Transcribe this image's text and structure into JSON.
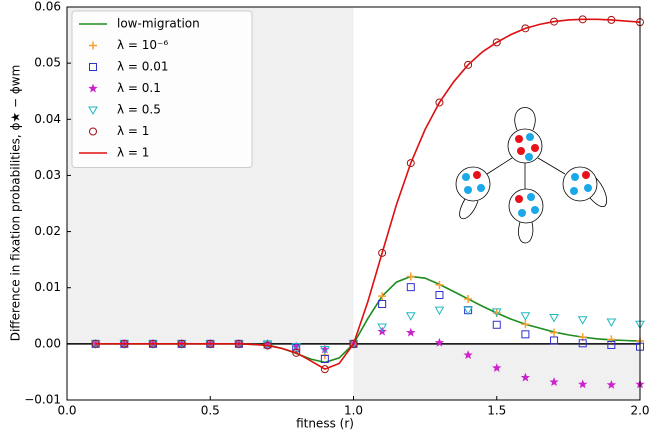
{
  "chart_data": {
    "type": "line",
    "xlabel": "fitness (r)",
    "ylabel": "Difference in fixation probabilities, ϕ★ − ϕwm",
    "xlim": [
      0,
      2.0
    ],
    "ylim": [
      -0.01,
      0.06
    ],
    "xticks": [
      {
        "value": 0,
        "label": "0.0"
      },
      0.5,
      {
        "value": 1,
        "label": "1.0"
      },
      1.5,
      {
        "value": 2,
        "label": "2.0"
      }
    ],
    "yticks": [
      {
        "value": -0.01,
        "label": "−0.01"
      },
      {
        "value": 0,
        "label": "0.00"
      },
      0.01,
      0.02,
      0.03,
      0.04,
      0.05,
      0.06
    ],
    "legend": "upper left",
    "series": [
      {
        "name": "low-migration",
        "color": "#1e8c1e",
        "mark": "line",
        "x": [
          0.1,
          0.15,
          0.2,
          0.25,
          0.3,
          0.35,
          0.4,
          0.45,
          0.5,
          0.55,
          0.6,
          0.65,
          0.7,
          0.75,
          0.8,
          0.85,
          0.9,
          0.95,
          1.0,
          1.05,
          1.1,
          1.15,
          1.2,
          1.25,
          1.3,
          1.35,
          1.4,
          1.45,
          1.5,
          1.55,
          1.6,
          1.65,
          1.7,
          1.75,
          1.8,
          1.85,
          1.9,
          1.95,
          2.0
        ],
        "values": [
          0,
          0,
          0,
          0,
          0,
          0,
          0,
          0,
          0,
          0,
          0,
          -0.0001,
          -0.0002,
          -0.0008,
          -0.0017,
          -0.0027,
          -0.0033,
          -0.0025,
          0,
          0.0045,
          0.0085,
          0.011,
          0.012,
          0.0117,
          0.0106,
          0.0093,
          0.008,
          0.0067,
          0.0055,
          0.0044,
          0.0035,
          0.0028,
          0.0021,
          0.0016,
          0.0012,
          0.0009,
          0.0007,
          0.0006,
          0.0005
        ]
      },
      {
        "name": "λ = 10⁻⁶",
        "color": "#f5a030",
        "mark": "plus",
        "x": [
          0.1,
          0.2,
          0.3,
          0.4,
          0.5,
          0.6,
          0.7,
          0.8,
          0.9,
          1.0,
          1.1,
          1.2,
          1.3,
          1.4,
          1.5,
          1.6,
          1.7,
          1.8,
          1.9,
          2.0
        ],
        "values": [
          0,
          0,
          0,
          0,
          0,
          0,
          -0.0001,
          -0.001,
          -0.002,
          0,
          0.0085,
          0.012,
          0.0105,
          0.008,
          0.0055,
          0.0035,
          0.002,
          0.0012,
          0.0008,
          0.0005
        ]
      },
      {
        "name": "λ = 0.01",
        "color": "#3030d0",
        "mark": "square",
        "x": [
          0.1,
          0.2,
          0.3,
          0.4,
          0.5,
          0.6,
          0.7,
          0.8,
          0.9,
          1.0,
          1.1,
          1.2,
          1.3,
          1.4,
          1.5,
          1.6,
          1.7,
          1.8,
          1.9,
          2.0
        ],
        "values": [
          0,
          0,
          0,
          0,
          0,
          0,
          -0.0001,
          -0.0008,
          -0.0027,
          0,
          0.0071,
          0.0101,
          0.0087,
          0.006,
          0.0034,
          0.0017,
          0.0006,
          0.0001,
          -0.0002,
          -0.0005
        ]
      },
      {
        "name": "λ = 0.1",
        "color": "#cc22cc",
        "mark": "star",
        "x": [
          0.1,
          0.2,
          0.3,
          0.4,
          0.5,
          0.6,
          0.7,
          0.8,
          0.9,
          1.0,
          1.1,
          1.2,
          1.3,
          1.4,
          1.5,
          1.6,
          1.7,
          1.8,
          1.9,
          2.0
        ],
        "values": [
          0,
          0,
          0,
          0,
          0,
          0,
          0,
          -0.0005,
          -0.001,
          0,
          0.0022,
          0.002,
          0.0002,
          -0.002,
          -0.0043,
          -0.006,
          -0.0068,
          -0.0072,
          -0.0073,
          -0.0072
        ]
      },
      {
        "name": "λ = 0.5",
        "color": "#20b8c0",
        "mark": "triangle",
        "x": [
          0.1,
          0.2,
          0.3,
          0.4,
          0.5,
          0.6,
          0.7,
          0.8,
          0.9,
          1.0,
          1.1,
          1.2,
          1.3,
          1.4,
          1.5,
          1.6,
          1.7,
          1.8,
          1.9,
          2.0
        ],
        "values": [
          0,
          0,
          0,
          0,
          0,
          0,
          0,
          -0.0005,
          -0.001,
          0,
          0.003,
          0.005,
          0.006,
          0.006,
          0.0057,
          0.005,
          0.0047,
          0.0043,
          0.0039,
          0.0035
        ]
      },
      {
        "name": "λ = 1",
        "color": "#a01010",
        "mark": "circle",
        "x": [
          0.1,
          0.2,
          0.3,
          0.4,
          0.5,
          0.6,
          0.7,
          0.8,
          0.9,
          1.0,
          1.1,
          1.2,
          1.3,
          1.4,
          1.5,
          1.6,
          1.7,
          1.8,
          1.9,
          2.0
        ],
        "values": [
          0,
          0,
          0,
          0,
          0,
          0,
          -0.0003,
          -0.0016,
          -0.0045,
          0,
          0.0162,
          0.0322,
          0.043,
          0.0497,
          0.0537,
          0.0562,
          0.0574,
          0.0578,
          0.0577,
          0.0573
        ]
      },
      {
        "name": "λ = 1",
        "color": "#dd1010",
        "mark": "line",
        "x": [
          0.1,
          0.15,
          0.2,
          0.25,
          0.3,
          0.35,
          0.4,
          0.45,
          0.5,
          0.55,
          0.6,
          0.65,
          0.7,
          0.75,
          0.8,
          0.85,
          0.9,
          0.95,
          1.0,
          1.05,
          1.1,
          1.15,
          1.2,
          1.25,
          1.3,
          1.35,
          1.4,
          1.45,
          1.5,
          1.55,
          1.6,
          1.65,
          1.7,
          1.75,
          1.8,
          1.85,
          1.9,
          1.95,
          2.0
        ],
        "values": [
          0,
          0,
          0,
          0,
          0,
          0,
          0,
          0,
          0,
          0,
          0,
          -0.0001,
          -0.0003,
          -0.0008,
          -0.0016,
          -0.003,
          -0.0045,
          -0.0035,
          0,
          0.0075,
          0.0162,
          0.0248,
          0.0322,
          0.0382,
          0.043,
          0.0467,
          0.0497,
          0.052,
          0.0537,
          0.0551,
          0.0562,
          0.0569,
          0.0574,
          0.0577,
          0.0578,
          0.0578,
          0.0577,
          0.0575,
          0.0573
        ]
      }
    ]
  }
}
